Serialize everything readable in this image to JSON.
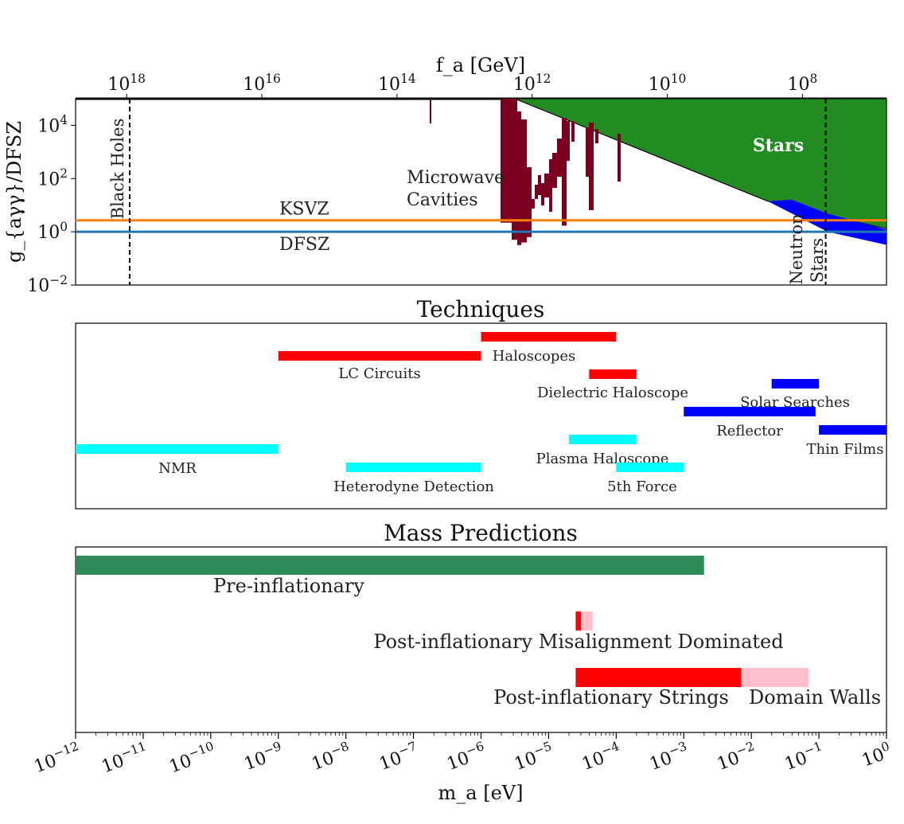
{
  "chart_data": [
    {
      "type": "region",
      "name": "coupling-panel",
      "ylabel": "g_{aγγ}/DFSZ",
      "top_axis_label": "f_a [GeV]",
      "top_axis_ticks": [
        "10^18",
        "10^16",
        "10^14",
        "10^12",
        "10^10",
        "10^8"
      ],
      "top_axis_tick_log_fa": [
        18,
        16,
        14,
        12,
        10,
        8
      ],
      "y_log_range": [
        -2,
        5
      ],
      "y_ticks": [
        "10^4",
        "10^2",
        "10^0",
        "10^-2"
      ],
      "y_tick_log": [
        4,
        2,
        0,
        -2
      ],
      "lines": [
        {
          "name": "KSVZ",
          "label": "KSVZ",
          "y": 2.7,
          "color": "#ff7f0e"
        },
        {
          "name": "DFSZ",
          "label": "DFSZ",
          "y": 1.0,
          "color": "#1f77b4"
        }
      ],
      "vlines": [
        {
          "name": "black-holes",
          "label": "Black Holes",
          "log_ma": -11.2
        },
        {
          "name": "neutron-stars",
          "label": "Neutron Stars",
          "log_ma": -0.9
        }
      ],
      "regions": [
        {
          "name": "stars",
          "label": "Stars",
          "color": "#228b22"
        },
        {
          "name": "neutron-star-bound",
          "label": "",
          "color": "#0000ff"
        },
        {
          "name": "microwave-cavities",
          "label": "Microwave Cavities",
          "color": "#7b0020"
        }
      ]
    },
    {
      "type": "range-bars",
      "title": "Techniques",
      "xscale": "log",
      "bars": [
        {
          "label": "Haloscopes",
          "min": -6,
          "max": -4,
          "color": "#ff0000"
        },
        {
          "label": "LC Circuits",
          "min": -9,
          "max": -6,
          "color": "#ff0000"
        },
        {
          "label": "Dielectric Haloscope",
          "min": -4.4,
          "max": -3.7,
          "color": "#ff0000"
        },
        {
          "label": "Solar Searches",
          "min": -1.7,
          "max": -1.0,
          "color": "#0000ff"
        },
        {
          "label": "Reflector",
          "min": -3.0,
          "max": -1.05,
          "color": "#0000ff"
        },
        {
          "label": "Thin Films",
          "min": -1.0,
          "max": 0,
          "color": "#0000ff"
        },
        {
          "label": "NMR",
          "min": -12,
          "max": -9,
          "color": "#00ffff"
        },
        {
          "label": "Plasma Haloscope",
          "min": -4.7,
          "max": -3.7,
          "color": "#00ffff"
        },
        {
          "label": "Heterodyne Detection",
          "min": -8,
          "max": -6,
          "color": "#00ffff"
        },
        {
          "label": "5th Force",
          "min": -4,
          "max": -3,
          "color": "#00ffff"
        }
      ]
    },
    {
      "type": "range-bars",
      "title": "Mass Predictions",
      "xscale": "log",
      "xlabel": "m_a [eV]",
      "x_log_range": [
        -12,
        0
      ],
      "x_ticks": [
        "10^-12",
        "10^-11",
        "10^-10",
        "10^-9",
        "10^-8",
        "10^-7",
        "10^-6",
        "10^-5",
        "10^-4",
        "10^-3",
        "10^-2",
        "10^-1",
        "10^0"
      ],
      "x_tick_log": [
        -12,
        -11,
        -10,
        -9,
        -8,
        -7,
        -6,
        -5,
        -4,
        -3,
        -2,
        -1,
        0
      ],
      "bars": [
        {
          "label": "Pre-inflationary",
          "segments": [
            {
              "min": -12,
              "max": -2.7,
              "color": "#2e8b57"
            }
          ]
        },
        {
          "label": "Post-inflationary Misalignment Dominated",
          "segments": [
            {
              "min": -4.6,
              "max": -4.52,
              "color": "#ff0000"
            },
            {
              "min": -4.52,
              "max": -4.35,
              "color": "#ffc0cb"
            }
          ]
        },
        {
          "label": "Post-inflationary Strings",
          "segments": [
            {
              "min": -4.6,
              "max": -2.15,
              "color": "#ff0000"
            }
          ]
        },
        {
          "label": "Domain Walls",
          "segments": [
            {
              "min": -2.15,
              "max": -1.15,
              "color": "#ffc0cb"
            }
          ]
        }
      ]
    }
  ]
}
